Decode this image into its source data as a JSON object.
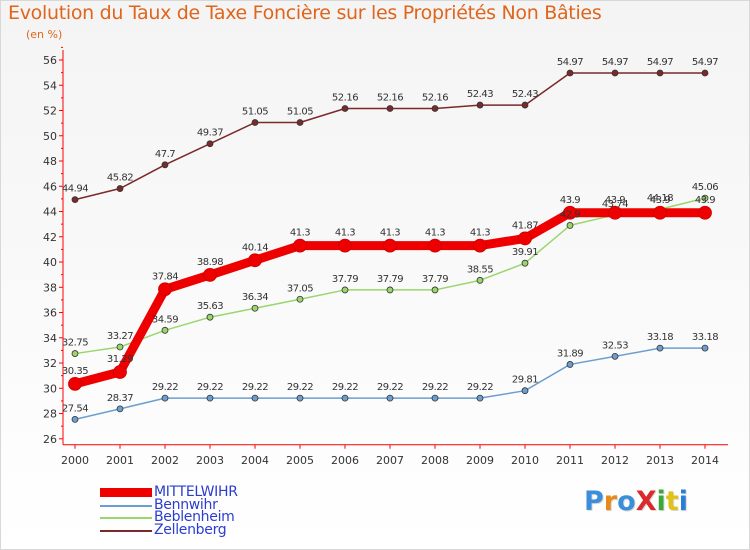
{
  "title": "Evolution du Taux de Taxe Foncière sur les Propriétés Non Bâties",
  "unit_label": "(en %)",
  "logo": {
    "text": "ProXiti",
    "colors": [
      "#3b8fd8",
      "#e88a1a",
      "#3b8fd8",
      "#d92b2b",
      "#3aa83a",
      "#e0c21a",
      "#2a7fd4"
    ]
  },
  "chart_data": {
    "type": "line",
    "x": [
      "2000",
      "2001",
      "2002",
      "2003",
      "2004",
      "2005",
      "2006",
      "2007",
      "2008",
      "2009",
      "2010",
      "2011",
      "2012",
      "2013",
      "2014"
    ],
    "ylim": [
      26,
      57
    ],
    "yticks": [
      26,
      28,
      30,
      32,
      34,
      36,
      38,
      40,
      42,
      44,
      46,
      48,
      50,
      52,
      54,
      56
    ],
    "grid": false,
    "legend_position": "bottom-left",
    "series": [
      {
        "name": "MITTELWIHR",
        "color": "#ee0000",
        "width": 9,
        "values": [
          30.35,
          31.29,
          37.84,
          38.98,
          40.14,
          41.3,
          41.3,
          41.3,
          41.3,
          41.3,
          41.87,
          43.9,
          43.9,
          43.9,
          43.9
        ],
        "labels": [
          "30.35",
          "31.29",
          "37.84",
          "38.98",
          "40.14",
          "41.3",
          "41.3",
          "41.3",
          "41.3",
          "41.3",
          "41.87",
          "43.9",
          "43.9",
          "43.9",
          "43.9"
        ]
      },
      {
        "name": "Bennwihr",
        "color": "#6c9fcf",
        "width": 1.5,
        "values": [
          27.54,
          28.37,
          29.22,
          29.22,
          29.22,
          29.22,
          29.22,
          29.22,
          29.22,
          29.22,
          29.81,
          31.89,
          32.53,
          33.18,
          33.18
        ],
        "labels": [
          "27.54",
          "28.37",
          "29.22",
          "29.22",
          "29.22",
          "29.22",
          "29.22",
          "29.22",
          "29.22",
          "29.22",
          "29.81",
          "31.89",
          "32.53",
          "33.18",
          "33.18"
        ]
      },
      {
        "name": "Beblenheim",
        "color": "#9ad66c",
        "width": 1.5,
        "values": [
          32.75,
          33.27,
          34.59,
          35.63,
          36.34,
          37.05,
          37.79,
          37.79,
          37.79,
          38.55,
          39.91,
          42.9,
          43.74,
          44.18,
          45.06
        ],
        "labels": [
          "32.75",
          "33.27",
          "34.59",
          "35.63",
          "36.34",
          "37.05",
          "37.79",
          "37.79",
          "37.79",
          "38.55",
          "39.91",
          "42.9",
          "43.74",
          "44.18",
          "45.06"
        ]
      },
      {
        "name": "Zellenberg",
        "color": "#7a2a2a",
        "width": 1.5,
        "values": [
          44.94,
          45.82,
          47.7,
          49.37,
          51.05,
          51.05,
          52.16,
          52.16,
          52.16,
          52.43,
          52.43,
          54.97,
          54.97,
          54.97,
          54.97
        ],
        "labels": [
          "44.94",
          "45.82",
          "47.7",
          "49.37",
          "51.05",
          "51.05",
          "52.16",
          "52.16",
          "52.16",
          "52.43",
          "52.43",
          "54.97",
          "54.97",
          "54.97",
          "54.97"
        ]
      }
    ]
  }
}
